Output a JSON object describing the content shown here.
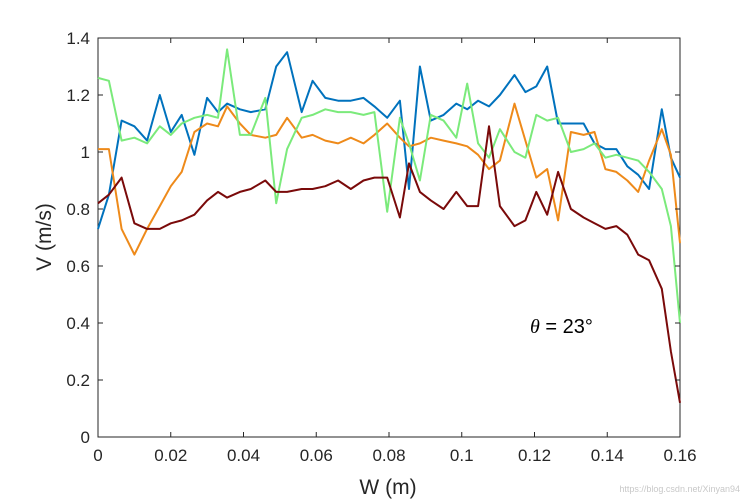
{
  "chart_data": {
    "type": "line",
    "title": "",
    "xlabel": "W (m)",
    "ylabel": "V (m/s)",
    "xlim": [
      0,
      0.16
    ],
    "ylim": [
      0,
      1.4
    ],
    "xticks": [
      0,
      0.02,
      0.04,
      0.06,
      0.08,
      0.1,
      0.12,
      0.14,
      0.16
    ],
    "xtick_labels": [
      "0",
      "0.02",
      "0.04",
      "0.06",
      "0.08",
      "0.1",
      "0.12",
      "0.14",
      "0.16"
    ],
    "yticks": [
      0,
      0.2,
      0.4,
      0.6,
      0.8,
      1.0,
      1.2,
      1.4
    ],
    "ytick_labels": [
      "0",
      "0.2",
      "0.4",
      "0.6",
      "0.8",
      "1",
      "1.2",
      "1.4"
    ],
    "grid": false,
    "annotation": {
      "symbol": "θ",
      "text": " = 23°"
    },
    "series": [
      {
        "name": "blue",
        "color": "#0072BD",
        "x": [
          0,
          0.003,
          0.0065,
          0.01,
          0.0135,
          0.017,
          0.02,
          0.023,
          0.0265,
          0.03,
          0.033,
          0.0355,
          0.039,
          0.042,
          0.046,
          0.049,
          0.052,
          0.056,
          0.059,
          0.0625,
          0.066,
          0.0695,
          0.073,
          0.076,
          0.0795,
          0.083,
          0.0855,
          0.0885,
          0.0915,
          0.095,
          0.0985,
          0.1015,
          0.1045,
          0.1075,
          0.1105,
          0.1145,
          0.1175,
          0.1205,
          0.1235,
          0.1265,
          0.13,
          0.1335,
          0.1365,
          0.1395,
          0.1425,
          0.1455,
          0.1485,
          0.1515,
          0.155,
          0.1575,
          0.16
        ],
        "values": [
          0.73,
          0.85,
          1.11,
          1.09,
          1.04,
          1.2,
          1.07,
          1.13,
          0.99,
          1.19,
          1.14,
          1.17,
          1.15,
          1.14,
          1.15,
          1.3,
          1.35,
          1.14,
          1.25,
          1.19,
          1.18,
          1.18,
          1.19,
          1.16,
          1.12,
          1.18,
          0.87,
          1.3,
          1.11,
          1.13,
          1.17,
          1.15,
          1.18,
          1.16,
          1.2,
          1.27,
          1.21,
          1.23,
          1.3,
          1.1,
          1.1,
          1.1,
          1.03,
          1.01,
          1.01,
          0.95,
          0.92,
          0.87,
          1.15,
          0.98,
          0.91
        ]
      },
      {
        "name": "orange",
        "color": "#EE8A1A",
        "x": [
          0,
          0.003,
          0.0065,
          0.01,
          0.0135,
          0.017,
          0.02,
          0.023,
          0.0265,
          0.03,
          0.033,
          0.0355,
          0.039,
          0.042,
          0.046,
          0.049,
          0.052,
          0.056,
          0.059,
          0.0625,
          0.066,
          0.0695,
          0.073,
          0.076,
          0.0795,
          0.083,
          0.0855,
          0.0885,
          0.0915,
          0.095,
          0.0985,
          0.1015,
          0.1045,
          0.1075,
          0.1105,
          0.1145,
          0.1175,
          0.1205,
          0.1235,
          0.1265,
          0.13,
          0.1335,
          0.1365,
          0.1395,
          0.1425,
          0.1455,
          0.1485,
          0.1515,
          0.155,
          0.1575,
          0.16
        ],
        "values": [
          1.01,
          1.01,
          0.73,
          0.64,
          0.73,
          0.81,
          0.88,
          0.93,
          1.07,
          1.1,
          1.09,
          1.16,
          1.1,
          1.06,
          1.05,
          1.06,
          1.12,
          1.05,
          1.06,
          1.04,
          1.03,
          1.05,
          1.03,
          1.06,
          1.1,
          1.05,
          1.02,
          1.03,
          1.05,
          1.04,
          1.03,
          1.02,
          0.99,
          0.94,
          0.97,
          1.17,
          1.04,
          0.91,
          0.94,
          0.76,
          1.07,
          1.06,
          1.07,
          0.94,
          0.93,
          0.9,
          0.86,
          0.97,
          1.08,
          0.99,
          0.68
        ]
      },
      {
        "name": "light-green",
        "color": "#7BEA7B",
        "x": [
          0,
          0.003,
          0.0065,
          0.01,
          0.0135,
          0.017,
          0.02,
          0.023,
          0.0265,
          0.03,
          0.033,
          0.0355,
          0.039,
          0.042,
          0.046,
          0.049,
          0.052,
          0.056,
          0.059,
          0.0625,
          0.066,
          0.0695,
          0.073,
          0.076,
          0.0795,
          0.083,
          0.0855,
          0.0885,
          0.0915,
          0.095,
          0.0985,
          0.1015,
          0.1045,
          0.1075,
          0.1105,
          0.1145,
          0.1175,
          0.1205,
          0.1235,
          0.1265,
          0.13,
          0.1335,
          0.1365,
          0.1395,
          0.1425,
          0.1455,
          0.1485,
          0.1515,
          0.155,
          0.1575,
          0.16
        ],
        "values": [
          1.26,
          1.25,
          1.04,
          1.05,
          1.03,
          1.09,
          1.06,
          1.1,
          1.12,
          1.13,
          1.12,
          1.36,
          1.06,
          1.06,
          1.19,
          0.82,
          1.01,
          1.12,
          1.13,
          1.15,
          1.14,
          1.14,
          1.13,
          1.14,
          0.79,
          1.12,
          1.03,
          0.9,
          1.13,
          1.11,
          1.05,
          1.24,
          1.03,
          0.98,
          1.08,
          1.0,
          0.98,
          1.13,
          1.11,
          1.12,
          1.0,
          1.01,
          1.03,
          0.98,
          0.99,
          0.98,
          0.97,
          0.93,
          0.87,
          0.74,
          0.4
        ]
      },
      {
        "name": "dark-red",
        "color": "#7A0A0A",
        "x": [
          0,
          0.003,
          0.0065,
          0.01,
          0.0135,
          0.017,
          0.02,
          0.023,
          0.0265,
          0.03,
          0.033,
          0.0355,
          0.039,
          0.042,
          0.046,
          0.049,
          0.052,
          0.056,
          0.059,
          0.0625,
          0.066,
          0.0695,
          0.073,
          0.076,
          0.0795,
          0.083,
          0.0855,
          0.0885,
          0.0915,
          0.095,
          0.0985,
          0.1015,
          0.1045,
          0.1075,
          0.1105,
          0.1145,
          0.1175,
          0.1205,
          0.1235,
          0.1265,
          0.13,
          0.1335,
          0.1365,
          0.1395,
          0.1425,
          0.1455,
          0.1485,
          0.1515,
          0.155,
          0.1575,
          0.16
        ],
        "values": [
          0.82,
          0.85,
          0.91,
          0.75,
          0.73,
          0.73,
          0.75,
          0.76,
          0.78,
          0.83,
          0.86,
          0.84,
          0.86,
          0.87,
          0.9,
          0.86,
          0.86,
          0.87,
          0.87,
          0.88,
          0.9,
          0.87,
          0.9,
          0.91,
          0.91,
          0.77,
          0.96,
          0.86,
          0.83,
          0.8,
          0.86,
          0.81,
          0.81,
          1.09,
          0.81,
          0.74,
          0.76,
          0.86,
          0.78,
          0.93,
          0.8,
          0.77,
          0.75,
          0.73,
          0.74,
          0.71,
          0.64,
          0.62,
          0.52,
          0.3,
          0.12
        ]
      }
    ]
  },
  "watermark": "https://blog.csdn.net/Xinyan94"
}
